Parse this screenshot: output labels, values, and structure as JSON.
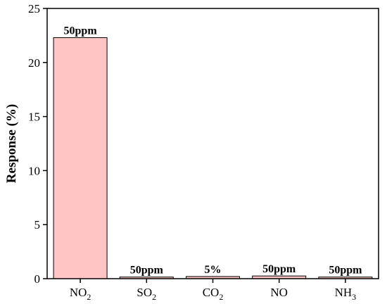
{
  "chart_data": {
    "type": "bar",
    "categories": [
      "NO2",
      "SO2",
      "CO2",
      "NO",
      "NH3"
    ],
    "category_display": [
      {
        "base": "NO",
        "sub": "2"
      },
      {
        "base": "SO",
        "sub": "2"
      },
      {
        "base": "CO",
        "sub": "2"
      },
      {
        "base": "NO",
        "sub": ""
      },
      {
        "base": "NH",
        "sub": "3"
      }
    ],
    "values": [
      22.3,
      0.15,
      0.2,
      0.25,
      0.15
    ],
    "data_labels": [
      "50ppm",
      "50ppm",
      "5%",
      "50ppm",
      "50ppm"
    ],
    "ylabel": "Response (%)",
    "xlabel": "",
    "ylim": [
      0,
      25
    ],
    "yticks": [
      0,
      5,
      10,
      15,
      20,
      25
    ],
    "bar_color": "#ffc4c4",
    "bar_edge_color": "#000000",
    "grid": false,
    "legend": "none"
  }
}
